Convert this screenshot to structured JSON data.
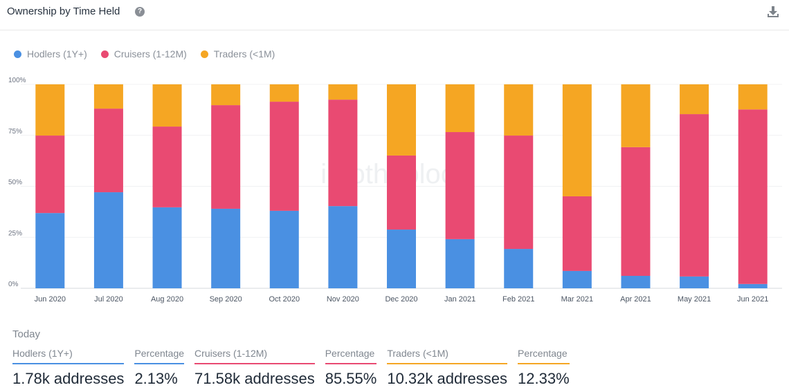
{
  "header": {
    "title": "Ownership by Time Held",
    "help_icon": "question-circle-icon",
    "download_icon": "download-icon"
  },
  "watermark": "intotheblock",
  "colors": {
    "hodlers": "#4a90e2",
    "cruisers": "#e94a72",
    "traders": "#f5a623"
  },
  "chart_data": {
    "type": "bar",
    "stacked": true,
    "percent": true,
    "categories": [
      "Jun 2020",
      "Jul 2020",
      "Aug 2020",
      "Sep 2020",
      "Oct 2020",
      "Nov 2020",
      "Dec 2020",
      "Jan 2021",
      "Feb 2021",
      "Mar 2021",
      "Apr 2021",
      "May 2021",
      "Jun 2021"
    ],
    "series": [
      {
        "name": "Hodlers (1Y+)",
        "values": [
          36.9,
          47.1,
          39.7,
          39.0,
          38.0,
          40.3,
          28.8,
          24.1,
          19.3,
          8.5,
          6.1,
          5.8,
          2.1
        ]
      },
      {
        "name": "Cruisers (1-12M)",
        "values": [
          38.0,
          41.0,
          39.6,
          50.8,
          53.5,
          52.2,
          36.3,
          52.5,
          55.6,
          36.6,
          63.1,
          79.6,
          85.6
        ]
      },
      {
        "name": "Traders (<1M)",
        "values": [
          25.1,
          11.9,
          20.7,
          10.2,
          8.5,
          7.5,
          34.9,
          23.4,
          25.1,
          54.9,
          30.8,
          14.6,
          12.3
        ]
      }
    ],
    "yticks": [
      "0%",
      "25%",
      "50%",
      "75%",
      "100%"
    ],
    "ylim": [
      0,
      100
    ],
    "grid": true,
    "legend": "top-left"
  },
  "today": {
    "label": "Today",
    "stats": [
      {
        "label": "Hodlers (1Y+)",
        "value": "1.78k addresses",
        "color": "#4a90e2"
      },
      {
        "label": "Percentage",
        "value": "2.13%",
        "color": "#4a90e2"
      },
      {
        "label": "Cruisers (1-12M)",
        "value": "71.58k addresses",
        "color": "#e94a72"
      },
      {
        "label": "Percentage",
        "value": "85.55%",
        "color": "#e94a72"
      },
      {
        "label": "Traders (<1M)",
        "value": "10.32k addresses",
        "color": "#f5a623"
      },
      {
        "label": "Percentage",
        "value": "12.33%",
        "color": "#f5a623"
      }
    ]
  }
}
